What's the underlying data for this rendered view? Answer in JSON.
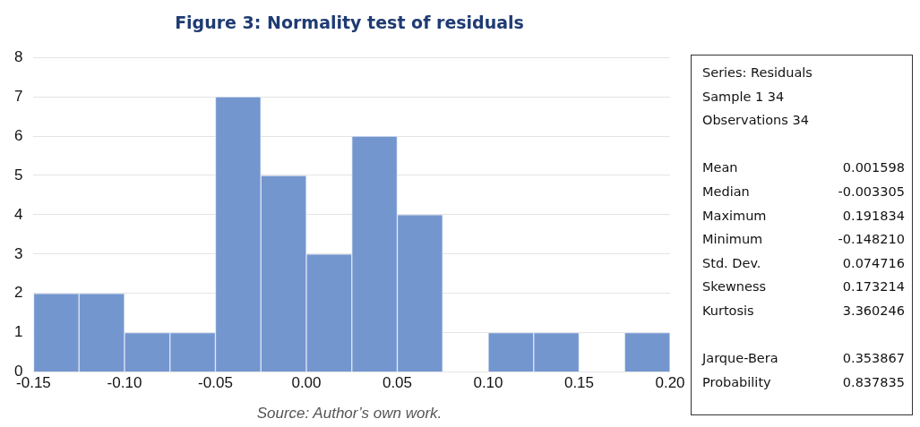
{
  "chart_data": [
    {
      "type": "histogram",
      "title": "Figure 3: Normality test of residuals",
      "bins": [
        -0.15,
        -0.125,
        -0.1,
        -0.075,
        -0.05,
        -0.025,
        0,
        0.025,
        0.05,
        0.075,
        0.1,
        0.125,
        0.15,
        0.175,
        0.2
      ],
      "values": [
        2,
        2,
        1,
        1,
        7,
        5,
        3,
        6,
        4,
        0,
        1,
        1,
        0,
        1
      ],
      "color": "#7396cf",
      "xlim": [
        -0.15,
        0.2
      ],
      "xticks": [
        -0.15,
        {
          "value": -0.1,
          "label": "-0.10"
        },
        -0.05,
        {
          "value": 0,
          "label": "0.00"
        },
        0.05,
        {
          "value": 0.1,
          "label": "0.10"
        },
        0.15,
        {
          "value": 0.2,
          "label": "0.20"
        }
      ],
      "ylim": [
        0,
        8
      ],
      "yticks": [
        0,
        1,
        2,
        3,
        4,
        5,
        6,
        7,
        8
      ],
      "grid": "y",
      "annotations": [
        "Source: Author’s own work."
      ]
    },
    {
      "type": "other",
      "annotations": [
        "Series: Residuals",
        "Sample 1 34",
        "Observations 34",
        "\nMean\t0.001598",
        "Median\t-0.003305",
        "Maximum\t0.191834",
        "Minimum\t-0.148210",
        "Std. Dev.\t0.074716",
        "Skewness\t0.173214",
        "Kurtosis\t3.360246",
        "\nJarque-Bera\t0.353867",
        "Probability\t0.837835"
      ]
    }
  ]
}
